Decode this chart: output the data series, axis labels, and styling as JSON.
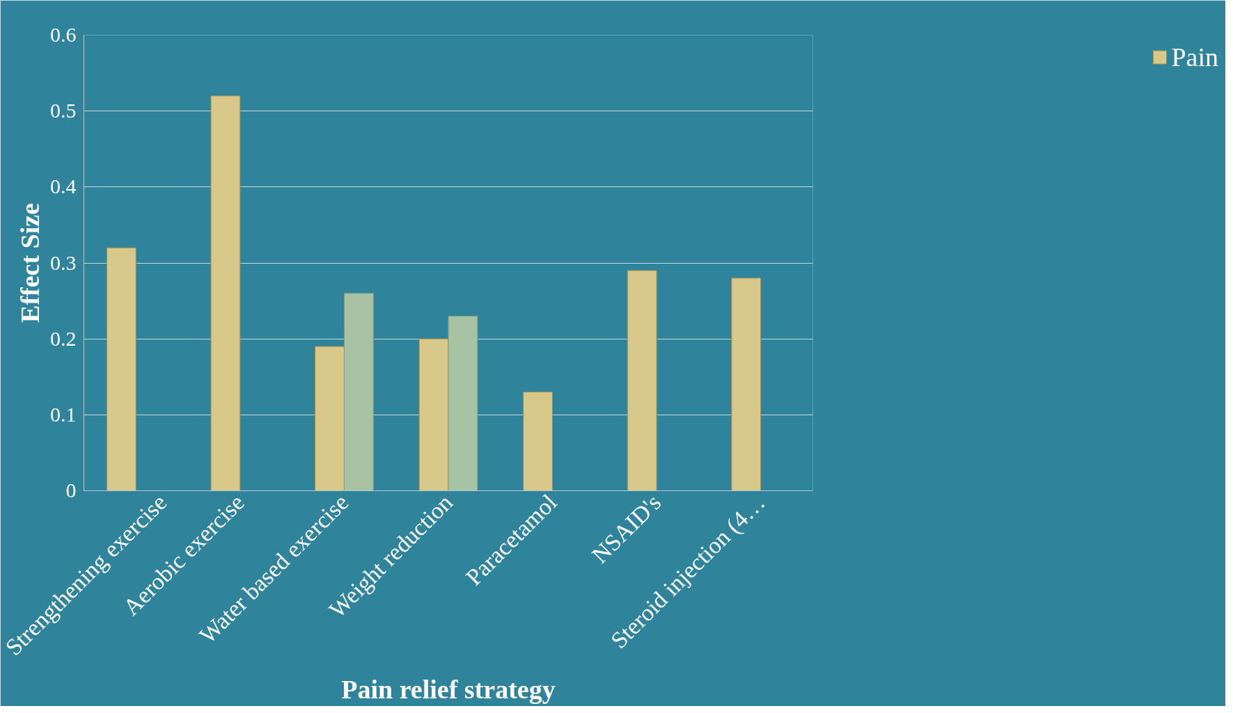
{
  "chart_data": {
    "type": "bar",
    "xlabel": "Pain relief strategy",
    "ylabel": "Effect Size",
    "categories": [
      "Strengthening exercise",
      "Aerobic exercise",
      "Water based exercise",
      "Weight reduction",
      "Paracetamol",
      "NSAID's",
      "Steroid injection (4…"
    ],
    "series": [
      {
        "name": "Pain",
        "color": "#d8c88a",
        "values": [
          0.32,
          0.52,
          0.19,
          0.2,
          0.13,
          0.29,
          0.28
        ]
      },
      {
        "color": "#a8c2a4",
        "values": [
          null,
          null,
          0.26,
          0.23,
          null,
          null,
          null
        ]
      }
    ],
    "ylim": [
      0,
      0.6
    ],
    "yticks": [
      0,
      0.1,
      0.2,
      0.3,
      0.4,
      0.5,
      0.6
    ],
    "grid": "y",
    "legend": "right"
  }
}
